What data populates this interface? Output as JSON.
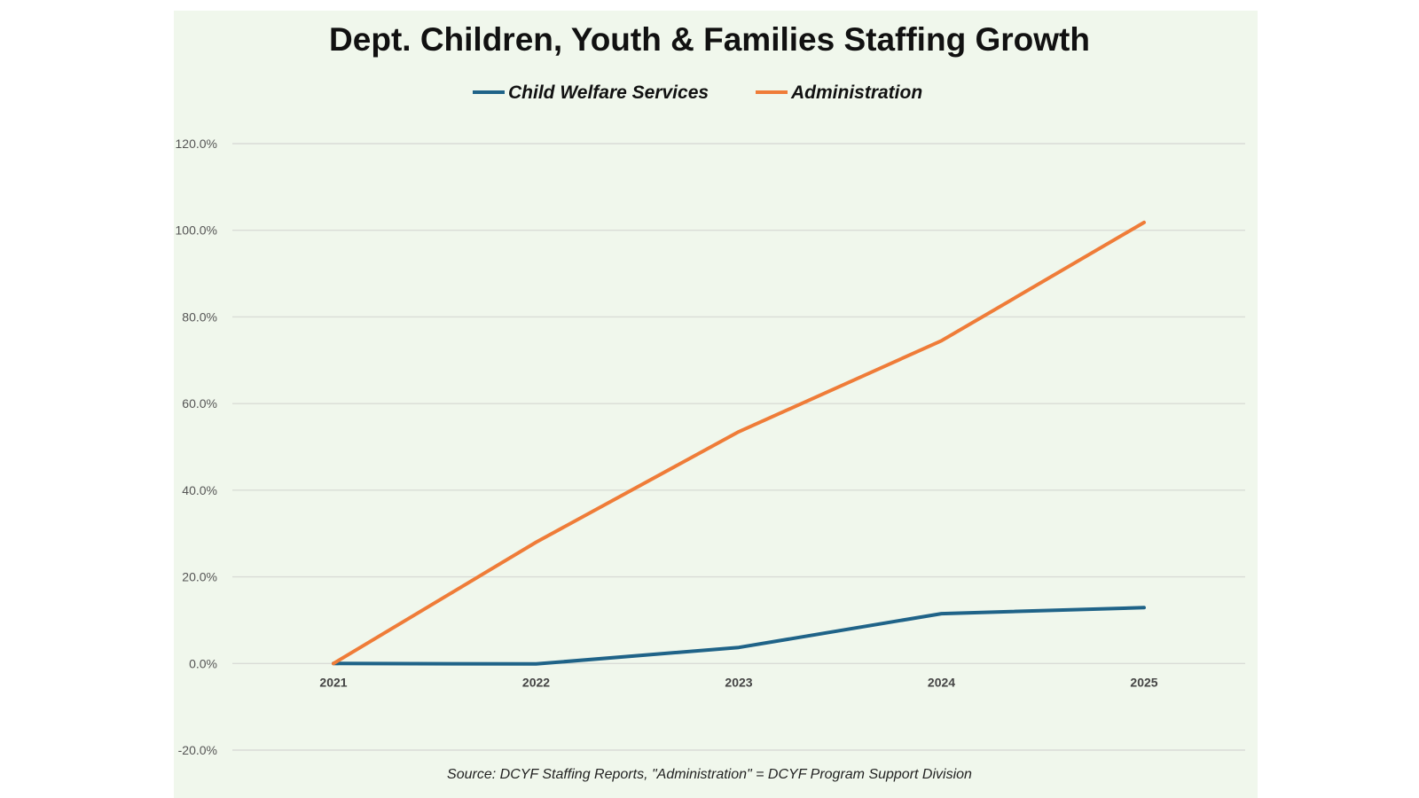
{
  "chart_data": {
    "type": "line",
    "title": "Dept. Children, Youth & Families Staffing Growth",
    "source_note": "Source: DCYF Staffing Reports, \"Administration\" = DCYF Program Support Division",
    "categories": [
      "2021",
      "2022",
      "2023",
      "2024",
      "2025"
    ],
    "series": [
      {
        "name": "Child Welfare Services",
        "color": "#1f6388",
        "values": [
          0.0,
          -0.1,
          3.7,
          11.5,
          12.9
        ]
      },
      {
        "name": "Administration",
        "color": "#ef7c38",
        "values": [
          0.0,
          28.0,
          53.5,
          74.5,
          101.8
        ]
      }
    ],
    "ylim": [
      -20,
      120
    ],
    "yticks": [
      -20,
      0,
      20,
      40,
      60,
      80,
      100,
      120
    ],
    "ytick_labels": [
      "-20.0%",
      "0.0%",
      "20.0%",
      "40.0%",
      "60.0%",
      "80.0%",
      "100.0%",
      "120.0%"
    ],
    "grid": true,
    "legend_position": "top-center",
    "background_color": "#f0f7ec"
  }
}
